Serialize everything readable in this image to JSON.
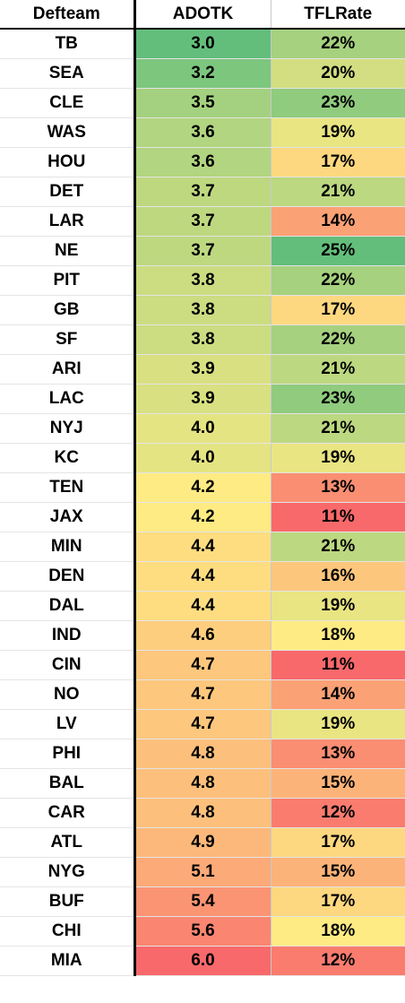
{
  "chart_data": {
    "type": "table",
    "columns": [
      "Defteam",
      "ADOTK",
      "TFLRate"
    ],
    "rows": [
      [
        "TB",
        "3.0",
        "22%"
      ],
      [
        "SEA",
        "3.2",
        "20%"
      ],
      [
        "CLE",
        "3.5",
        "23%"
      ],
      [
        "WAS",
        "3.6",
        "19%"
      ],
      [
        "HOU",
        "3.6",
        "17%"
      ],
      [
        "DET",
        "3.7",
        "21%"
      ],
      [
        "LAR",
        "3.7",
        "14%"
      ],
      [
        "NE",
        "3.7",
        "25%"
      ],
      [
        "PIT",
        "3.8",
        "22%"
      ],
      [
        "GB",
        "3.8",
        "17%"
      ],
      [
        "SF",
        "3.8",
        "22%"
      ],
      [
        "ARI",
        "3.9",
        "21%"
      ],
      [
        "LAC",
        "3.9",
        "23%"
      ],
      [
        "NYJ",
        "4.0",
        "21%"
      ],
      [
        "KC",
        "4.0",
        "19%"
      ],
      [
        "TEN",
        "4.2",
        "13%"
      ],
      [
        "JAX",
        "4.2",
        "11%"
      ],
      [
        "MIN",
        "4.4",
        "21%"
      ],
      [
        "DEN",
        "4.4",
        "16%"
      ],
      [
        "DAL",
        "4.4",
        "19%"
      ],
      [
        "IND",
        "4.6",
        "18%"
      ],
      [
        "CIN",
        "4.7",
        "11%"
      ],
      [
        "NO",
        "4.7",
        "14%"
      ],
      [
        "LV",
        "4.7",
        "19%"
      ],
      [
        "PHI",
        "4.8",
        "13%"
      ],
      [
        "BAL",
        "4.8",
        "15%"
      ],
      [
        "CAR",
        "4.8",
        "12%"
      ],
      [
        "ATL",
        "4.9",
        "17%"
      ],
      [
        "NYG",
        "5.1",
        "15%"
      ],
      [
        "BUF",
        "5.4",
        "17%"
      ],
      [
        "CHI",
        "5.6",
        "18%"
      ],
      [
        "MIA",
        "6.0",
        "12%"
      ]
    ]
  }
}
